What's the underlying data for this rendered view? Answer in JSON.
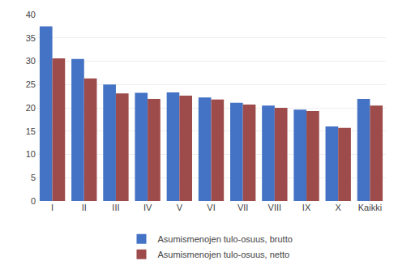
{
  "chart_data": {
    "type": "bar",
    "categories": [
      "I",
      "II",
      "III",
      "IV",
      "V",
      "VI",
      "VII",
      "VIII",
      "IX",
      "X",
      "Kaikki"
    ],
    "series": [
      {
        "name": "Asumismenojen tulo-osuus, brutto",
        "color": "#4472C4",
        "values": [
          37.5,
          30.5,
          25.0,
          23.2,
          23.3,
          22.2,
          21.1,
          20.5,
          19.6,
          16.0,
          21.9
        ]
      },
      {
        "name": "Asumismenojen tulo-osuus, netto",
        "color": "#9E4B4B",
        "values": [
          30.6,
          26.3,
          23.1,
          21.9,
          22.6,
          21.8,
          20.7,
          20.0,
          19.3,
          15.7,
          20.5
        ]
      }
    ],
    "ylim": [
      0,
      40
    ],
    "yticks": [
      0,
      5,
      10,
      15,
      20,
      25,
      30,
      35,
      40
    ],
    "grid": true,
    "legend": "bottom"
  }
}
